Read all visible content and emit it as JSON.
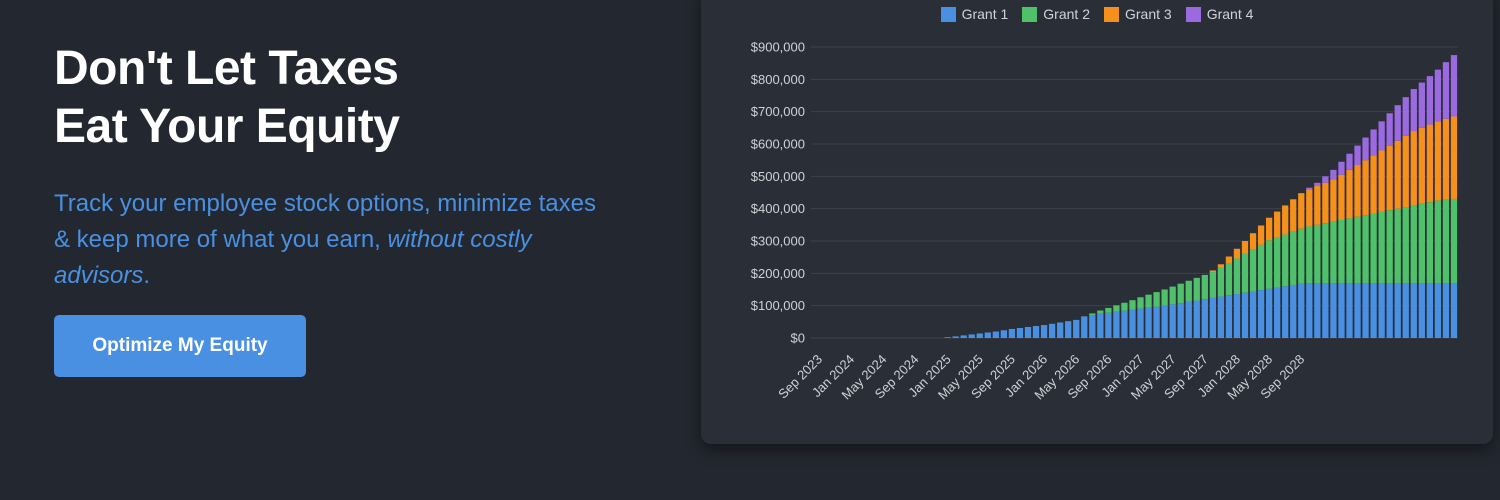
{
  "hero": {
    "title_line1": "Don't Let Taxes",
    "title_line2": "Eat Your Equity",
    "subtitle_main": "Track your employee stock options, minimize taxes & keep more of what you earn, ",
    "subtitle_em": "without costly advisors",
    "subtitle_end": "."
  },
  "cta": {
    "label": "Optimize My Equity"
  },
  "chart_data": {
    "type": "bar",
    "stacked": true,
    "legend": {
      "position": "top-center"
    },
    "ylim": [
      0,
      900000
    ],
    "yticks": [
      "$0",
      "$100,000",
      "$200,000",
      "$300,000",
      "$400,000",
      "$500,000",
      "$600,000",
      "$700,000",
      "$800,000",
      "$900,000"
    ],
    "xticks": [
      "Sep 2023",
      "Jan 2024",
      "May 2024",
      "Sep 2024",
      "Jan 2025",
      "May 2025",
      "Sep 2025",
      "Jan 2026",
      "May 2026",
      "Sep 2026",
      "Jan 2027",
      "May 2027",
      "Sep 2027",
      "Jan 2028",
      "May 2028",
      "Sep 2028"
    ],
    "x_start": "Sep 2023",
    "x_end": "Jan 2029",
    "series": [
      {
        "name": "Grant 1",
        "color": "#4a90e2",
        "values": [
          0,
          0,
          0,
          0,
          0,
          0,
          0,
          0,
          0,
          0,
          0,
          0,
          0,
          0,
          0,
          0,
          2500,
          5000,
          8000,
          11000,
          14000,
          17000,
          20000,
          24000,
          28000,
          31000,
          34000,
          37000,
          40000,
          44000,
          48000,
          52000,
          56000,
          67000,
          71000,
          75000,
          78000,
          81000,
          84000,
          87000,
          91000,
          94000,
          97000,
          100000,
          104000,
          108000,
          112000,
          116000,
          120000,
          124000,
          128000,
          132000,
          136000,
          140000,
          144000,
          148000,
          152000,
          156000,
          160000,
          164000,
          168000,
          170000,
          170000,
          170000,
          170000,
          170000,
          170000,
          170000,
          170000,
          170000,
          170000,
          170000,
          170000,
          170000,
          170000,
          170000,
          170000,
          170000,
          170000,
          170000
        ]
      },
      {
        "name": "Grant 2",
        "color": "#4fc16a",
        "values": [
          0,
          0,
          0,
          0,
          0,
          0,
          0,
          0,
          0,
          0,
          0,
          0,
          0,
          0,
          0,
          0,
          0,
          0,
          0,
          0,
          0,
          0,
          0,
          0,
          0,
          0,
          0,
          0,
          0,
          0,
          0,
          0,
          0,
          0,
          5000,
          10000,
          15000,
          20000,
          25000,
          30000,
          35000,
          40000,
          45000,
          50000,
          55000,
          60000,
          65000,
          70000,
          75000,
          80000,
          90000,
          100000,
          110000,
          120000,
          130000,
          140000,
          150000,
          155000,
          160000,
          165000,
          170000,
          175000,
          180000,
          185000,
          190000,
          195000,
          200000,
          205000,
          210000,
          215000,
          220000,
          225000,
          230000,
          235000,
          240000,
          245000,
          250000,
          255000,
          258000,
          260000
        ]
      },
      {
        "name": "Grant 3",
        "color": "#f5901d",
        "values": [
          0,
          0,
          0,
          0,
          0,
          0,
          0,
          0,
          0,
          0,
          0,
          0,
          0,
          0,
          0,
          0,
          0,
          0,
          0,
          0,
          0,
          0,
          0,
          0,
          0,
          0,
          0,
          0,
          0,
          0,
          0,
          0,
          0,
          0,
          0,
          0,
          0,
          0,
          0,
          0,
          0,
          0,
          0,
          0,
          0,
          0,
          0,
          0,
          0,
          5000,
          10000,
          20000,
          30000,
          40000,
          50000,
          60000,
          70000,
          80000,
          90000,
          100000,
          110000,
          115000,
          120000,
          125000,
          130000,
          140000,
          150000,
          160000,
          170000,
          180000,
          190000,
          200000,
          210000,
          220000,
          230000,
          235000,
          240000,
          245000,
          250000,
          255000
        ]
      },
      {
        "name": "Grant 4",
        "color": "#9b6ae0",
        "values": [
          0,
          0,
          0,
          0,
          0,
          0,
          0,
          0,
          0,
          0,
          0,
          0,
          0,
          0,
          0,
          0,
          0,
          0,
          0,
          0,
          0,
          0,
          0,
          0,
          0,
          0,
          0,
          0,
          0,
          0,
          0,
          0,
          0,
          0,
          0,
          0,
          0,
          0,
          0,
          0,
          0,
          0,
          0,
          0,
          0,
          0,
          0,
          0,
          0,
          0,
          0,
          0,
          0,
          0,
          0,
          0,
          0,
          0,
          0,
          0,
          0,
          5000,
          10000,
          20000,
          30000,
          40000,
          50000,
          60000,
          70000,
          80000,
          90000,
          100000,
          110000,
          120000,
          130000,
          140000,
          150000,
          160000,
          175000,
          190000
        ]
      }
    ]
  }
}
